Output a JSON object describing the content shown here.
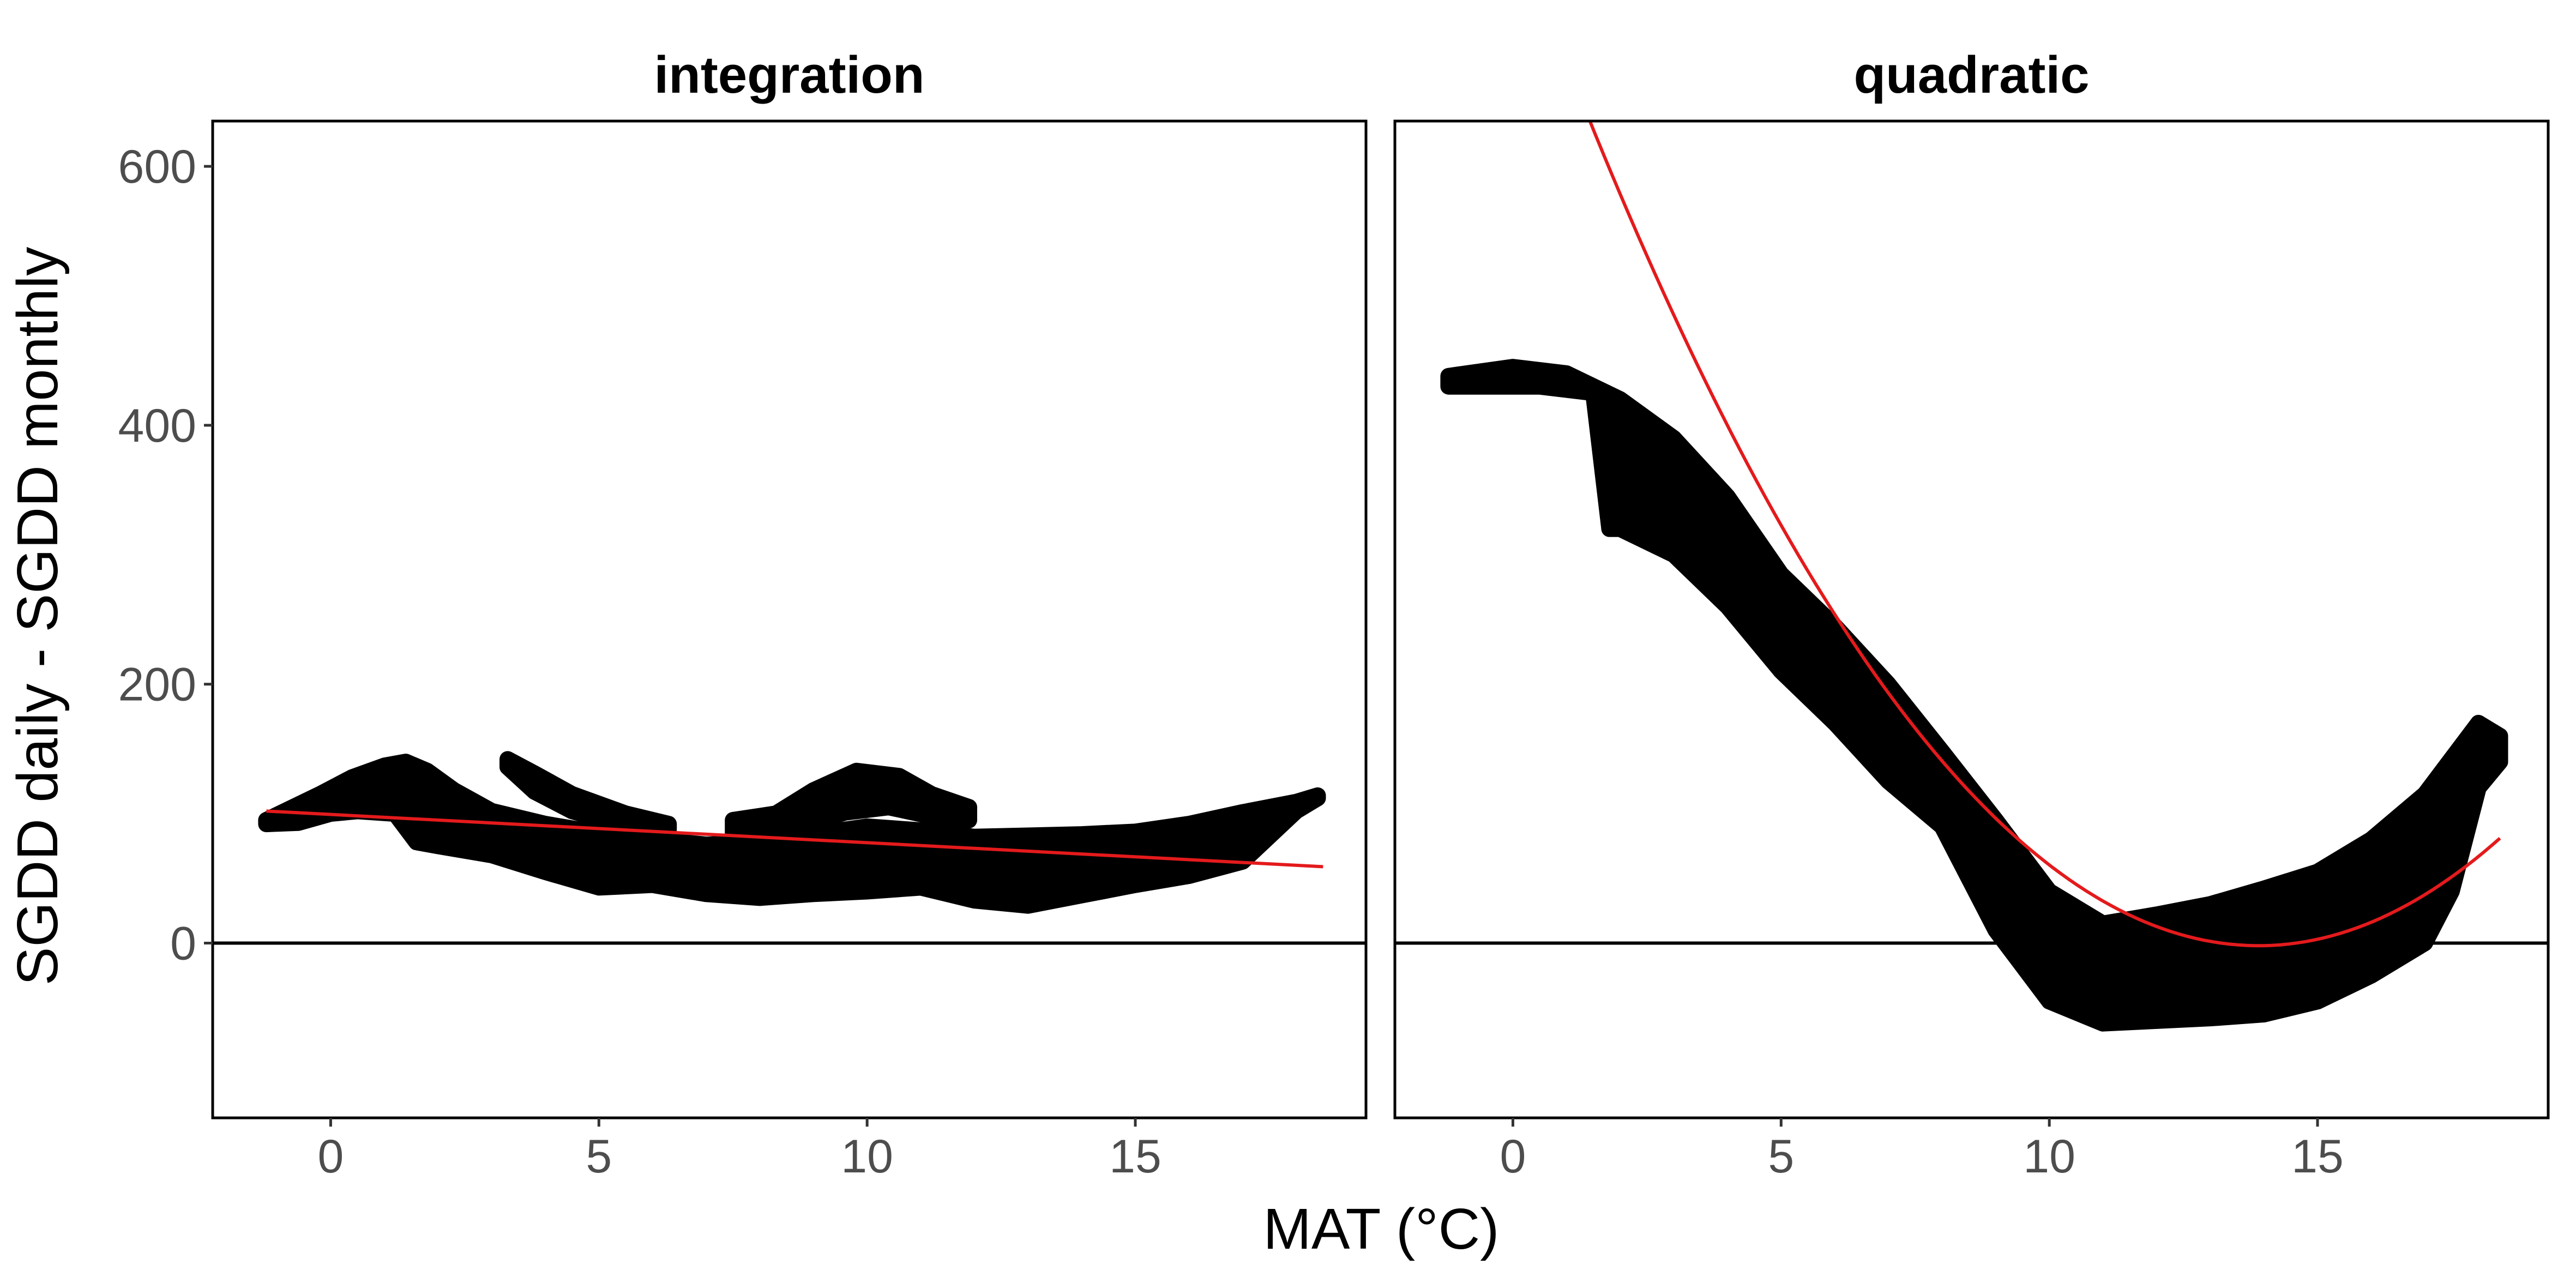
{
  "chart_data": {
    "type": "scatter",
    "xlabel": "MAT (°C)",
    "ylabel": "SGDD daily - SGDD monthly",
    "xlim": [
      -2.2,
      19.3
    ],
    "ylim": [
      -135,
      635
    ],
    "x_ticks": [
      0,
      5,
      10,
      15
    ],
    "y_ticks": [
      0,
      200,
      400,
      600
    ],
    "grid": false,
    "hline": 0,
    "colors": {
      "points": "#000000",
      "fit": "#e41a1c",
      "hline": "#000000"
    },
    "panels": [
      {
        "title": "integration",
        "fit": {
          "type": "linear",
          "x": [
            -1.2,
            18.5
          ],
          "y": [
            102,
            59
          ]
        },
        "point_clouds": [
          {
            "upper": [
              [
                -1.2,
                95
              ],
              [
                -0.8,
                103
              ],
              [
                -0.2,
                115
              ],
              [
                0.4,
                128
              ],
              [
                1.0,
                137
              ],
              [
                1.4,
                140
              ],
              [
                1.8,
                133
              ],
              [
                2.3,
                118
              ],
              [
                3.0,
                102
              ],
              [
                4.0,
                92
              ],
              [
                5.0,
                85
              ],
              [
                6.0,
                80
              ],
              [
                7.0,
                76
              ],
              [
                8.0,
                78
              ],
              [
                9.0,
                84
              ],
              [
                10.0,
                90
              ],
              [
                11.0,
                87
              ],
              [
                12.0,
                82
              ],
              [
                13.0,
                83
              ],
              [
                14.0,
                84
              ],
              [
                15.0,
                86
              ],
              [
                16.0,
                92
              ],
              [
                17.0,
                101
              ],
              [
                18.0,
                109
              ],
              [
                18.4,
                114
              ]
            ],
            "lower": [
              [
                18.4,
                112
              ],
              [
                18.0,
                102
              ],
              [
                17.0,
                63
              ],
              [
                16.0,
                52
              ],
              [
                15.0,
                45
              ],
              [
                14.0,
                37
              ],
              [
                13.0,
                29
              ],
              [
                12.0,
                33
              ],
              [
                11.0,
                43
              ],
              [
                10.0,
                40
              ],
              [
                9.0,
                38
              ],
              [
                8.0,
                35
              ],
              [
                7.0,
                38
              ],
              [
                6.0,
                45
              ],
              [
                5.0,
                43
              ],
              [
                4.0,
                55
              ],
              [
                3.0,
                68
              ],
              [
                2.0,
                75
              ],
              [
                1.6,
                78
              ],
              [
                1.2,
                100
              ],
              [
                0.5,
                102
              ],
              [
                0.0,
                100
              ],
              [
                -0.6,
                93
              ],
              [
                -1.2,
                92
              ]
            ]
          },
          {
            "upper": [
              [
                3.3,
                142
              ],
              [
                3.8,
                131
              ],
              [
                4.5,
                115
              ],
              [
                5.5,
                100
              ],
              [
                6.3,
                92
              ]
            ],
            "lower": [
              [
                6.3,
                88
              ],
              [
                5.5,
                90
              ],
              [
                4.5,
                102
              ],
              [
                3.8,
                117
              ],
              [
                3.3,
                136
              ]
            ]
          },
          {
            "upper": [
              [
                7.5,
                95
              ],
              [
                8.3,
                100
              ],
              [
                9.0,
                118
              ],
              [
                9.8,
                133
              ],
              [
                10.6,
                129
              ],
              [
                11.2,
                115
              ],
              [
                11.9,
                105
              ]
            ],
            "lower": [
              [
                11.9,
                95
              ],
              [
                11.2,
                98
              ],
              [
                10.4,
                105
              ],
              [
                9.6,
                101
              ],
              [
                8.6,
                89
              ],
              [
                7.5,
                85
              ]
            ]
          }
        ]
      },
      {
        "title": "quadratic",
        "fit": {
          "type": "quadratic",
          "x_range": [
            -0.5,
            18.4
          ],
          "vertex": [
            13.9,
            -2
          ],
          "a": 4.1
        },
        "point_clouds": [
          {
            "upper": [
              [
                -1.2,
                438
              ],
              [
                0.0,
                445
              ],
              [
                1.0,
                440
              ],
              [
                2.0,
                420
              ],
              [
                3.0,
                390
              ],
              [
                4.0,
                345
              ],
              [
                5.0,
                285
              ],
              [
                6.0,
                245
              ],
              [
                7.0,
                200
              ],
              [
                8.0,
                148
              ],
              [
                9.0,
                95
              ],
              [
                10.0,
                40
              ],
              [
                11.0,
                15
              ],
              [
                12.0,
                22
              ],
              [
                13.0,
                30
              ],
              [
                14.0,
                42
              ],
              [
                15.0,
                55
              ],
              [
                16.0,
                80
              ],
              [
                17.0,
                115
              ],
              [
                18.0,
                170
              ],
              [
                18.4,
                160
              ]
            ],
            "lower": [
              [
                18.4,
                140
              ],
              [
                18.0,
                120
              ],
              [
                17.5,
                40
              ],
              [
                17.0,
                0
              ],
              [
                16.0,
                -25
              ],
              [
                15.0,
                -45
              ],
              [
                14.0,
                -55
              ],
              [
                13.0,
                -58
              ],
              [
                12.0,
                -60
              ],
              [
                11.0,
                -62
              ],
              [
                10.0,
                -45
              ],
              [
                9.0,
                10
              ],
              [
                8.0,
                90
              ],
              [
                7.0,
                125
              ],
              [
                6.0,
                170
              ],
              [
                5.0,
                210
              ],
              [
                4.0,
                260
              ],
              [
                3.0,
                300
              ],
              [
                2.0,
                320
              ],
              [
                1.8,
                320
              ],
              [
                1.5,
                425
              ],
              [
                0.5,
                430
              ],
              [
                -1.2,
                430
              ]
            ]
          }
        ]
      }
    ]
  }
}
